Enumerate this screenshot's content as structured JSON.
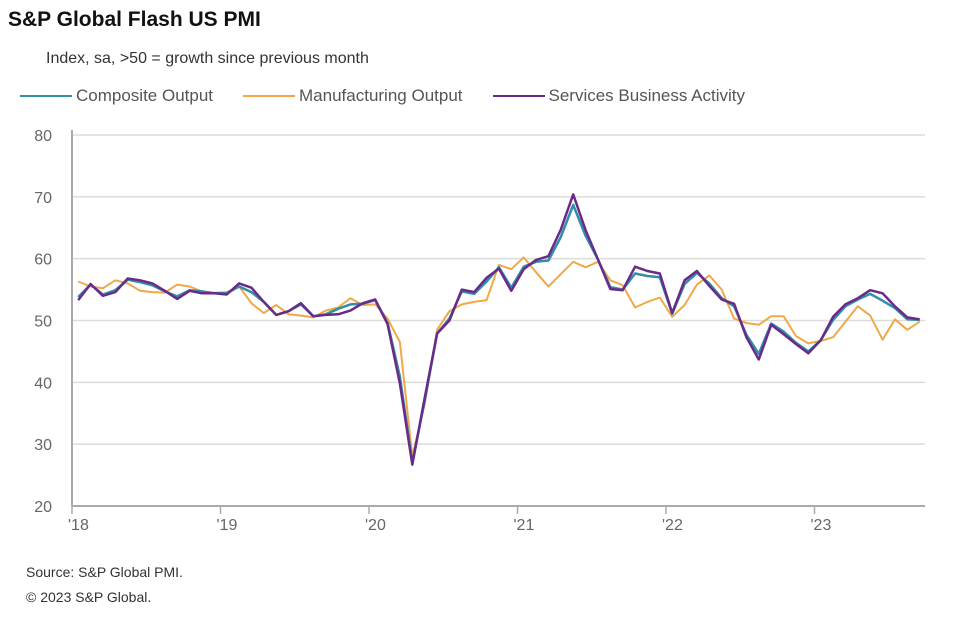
{
  "chart_data": {
    "type": "line",
    "title": "S&P Global Flash US PMI",
    "subtitle": "Index, sa, >50 = growth  since previous month",
    "ylim": [
      20,
      80
    ],
    "yticks": [
      20,
      30,
      40,
      50,
      60,
      70,
      80
    ],
    "xticks": [
      "'18",
      "'19",
      "'20",
      "'21",
      "'22",
      "'23"
    ],
    "x_start": "2018-01",
    "x_end": "2023-09",
    "frequency": "monthly",
    "grid": "horizontal",
    "legend_position": "top",
    "series": [
      {
        "name": "Composite Output",
        "color": "#2f8fa6",
        "values": [
          53.8,
          55.8,
          54.2,
          54.9,
          56.6,
          56.2,
          55.7,
          54.7,
          53.9,
          54.9,
          54.7,
          54.4,
          54.4,
          55.5,
          54.6,
          53.0,
          50.9,
          51.5,
          52.6,
          50.7,
          51.0,
          51.9,
          52.6,
          52.7,
          53.3,
          49.6,
          40.9,
          27.0,
          37.0,
          47.9,
          50.3,
          54.7,
          54.3,
          56.3,
          58.6,
          55.3,
          58.7,
          59.5,
          59.7,
          63.5,
          68.7,
          63.7,
          59.9,
          55.4,
          55.0,
          57.6,
          57.2,
          57.0,
          51.1,
          55.9,
          57.7,
          56.0,
          53.6,
          52.3,
          47.7,
          44.6,
          49.5,
          48.2,
          46.4,
          45.0,
          46.8,
          50.1,
          52.3,
          53.4,
          54.3,
          53.2,
          52.0,
          50.2,
          50.1
        ]
      },
      {
        "name": "Manufacturing Output",
        "color": "#f0a848",
        "values": [
          56.3,
          55.5,
          55.2,
          56.5,
          56.0,
          54.8,
          54.6,
          54.5,
          55.8,
          55.5,
          54.7,
          54.5,
          54.6,
          55.5,
          52.8,
          51.2,
          52.5,
          51.0,
          50.8,
          50.5,
          51.6,
          52.1,
          53.6,
          52.5,
          52.6,
          50.3,
          46.5,
          28.0,
          36.5,
          48.5,
          51.5,
          52.6,
          53.0,
          53.3,
          59.0,
          58.3,
          60.2,
          57.8,
          55.5,
          57.5,
          59.5,
          58.6,
          59.5,
          56.5,
          55.7,
          52.1,
          53.0,
          53.7,
          50.6,
          52.5,
          55.8,
          57.3,
          55.0,
          50.3,
          49.6,
          49.3,
          50.7,
          50.7,
          47.5,
          46.3,
          46.7,
          47.3,
          49.8,
          52.3,
          50.8,
          46.9,
          50.2,
          48.5,
          49.8
        ]
      },
      {
        "name": "Services Business Activity",
        "color": "#6a2a8a",
        "values": [
          53.3,
          55.9,
          54.0,
          54.6,
          56.8,
          56.5,
          56.0,
          54.8,
          53.5,
          54.8,
          54.4,
          54.4,
          54.2,
          56.0,
          55.3,
          53.0,
          50.9,
          51.5,
          52.8,
          50.7,
          50.9,
          51.0,
          51.6,
          52.8,
          53.4,
          49.4,
          39.8,
          26.7,
          37.5,
          47.9,
          50.0,
          55.0,
          54.6,
          56.9,
          58.4,
          54.8,
          58.3,
          59.8,
          60.4,
          64.7,
          70.4,
          64.6,
          59.9,
          55.1,
          54.9,
          58.7,
          58.0,
          57.6,
          51.2,
          56.5,
          58.0,
          55.6,
          53.4,
          52.7,
          47.3,
          43.7,
          49.3,
          47.8,
          46.2,
          44.7,
          46.8,
          50.6,
          52.6,
          53.6,
          54.9,
          54.4,
          52.3,
          50.5,
          50.2
        ]
      }
    ]
  },
  "footer": {
    "source": "Source: S&P Global PMI.",
    "copyright": "© 2023 S&P Global."
  }
}
